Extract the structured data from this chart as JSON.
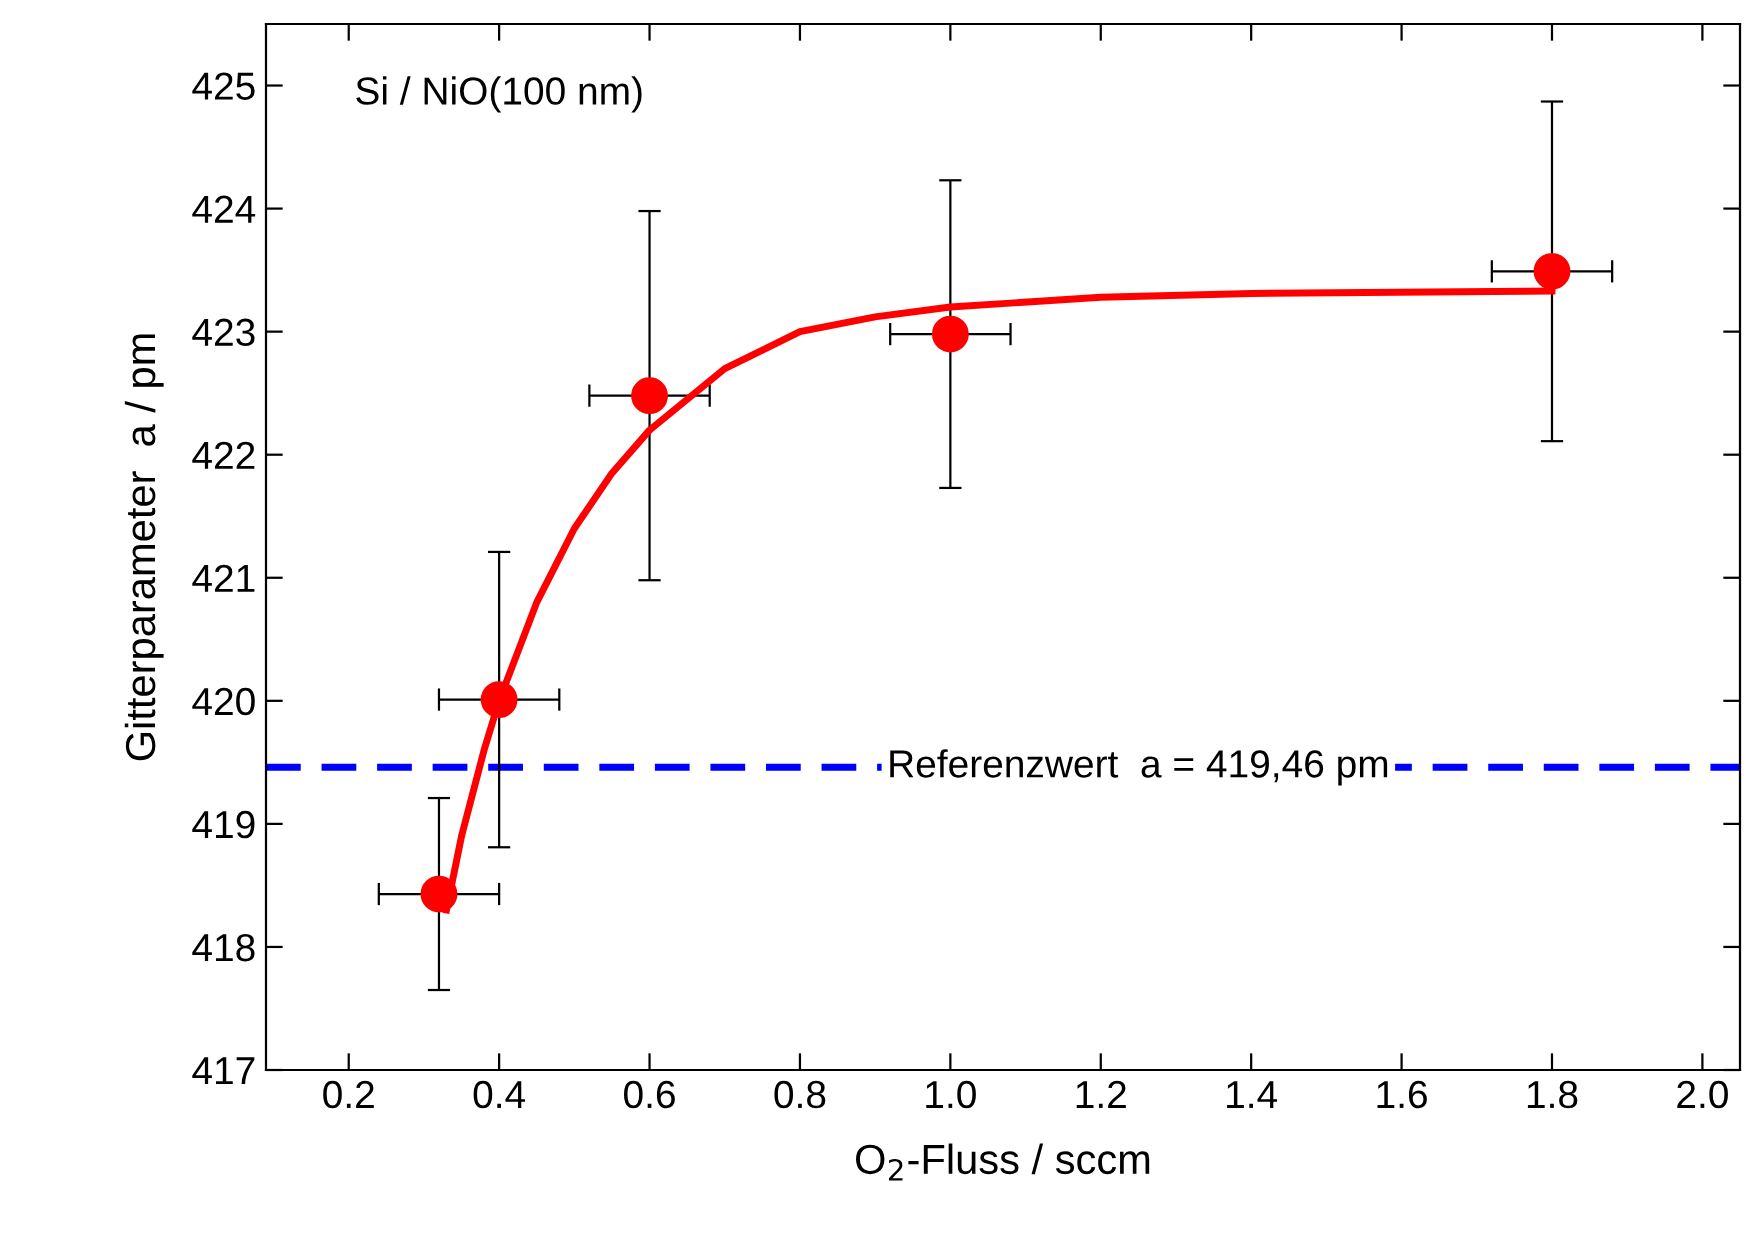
{
  "chart_data": {
    "type": "scatter",
    "xlabel": "O$_{2}$-Fluss / sccm",
    "ylabel": "Gitterparameter  a / pm",
    "annotations": [
      "Si / NiO(100 nm)"
    ],
    "xlim": [
      0.09,
      2.05
    ],
    "ylim": [
      417,
      425.5
    ],
    "xticks": [
      0.2,
      0.4,
      0.6,
      0.8,
      {
        "value": 1,
        "label": "1.0"
      },
      1.2,
      1.4,
      1.6,
      1.8,
      {
        "value": 2,
        "label": "2.0"
      }
    ],
    "yticks": [
      417,
      418,
      419,
      420,
      421,
      422,
      423,
      424,
      425
    ],
    "grid": false,
    "legend": false,
    "marker": "circle",
    "series": [
      {
        "color": "#ff0000",
        "x": [
          0.32,
          0.4,
          0.6,
          1.0,
          1.8
        ],
        "values": [
          418.43,
          420.01,
          422.48,
          422.98,
          423.49
        ],
        "errors": [
          0.78,
          1.2,
          1.5,
          1.25,
          1.38
        ],
        "xerrors": [
          0.08,
          0.08,
          0.08,
          0.08,
          0.08
        ]
      },
      {
        "type": "line",
        "color": "#ff0000",
        "line_style": "solid",
        "marker": "none",
        "x": [
          0.33,
          0.35,
          0.38,
          0.4,
          0.45,
          0.5,
          0.55,
          0.6,
          0.7,
          0.8,
          0.9,
          1.0,
          1.2,
          1.4,
          1.8
        ],
        "values": [
          418.3,
          418.9,
          419.6,
          420.0,
          420.8,
          421.4,
          421.85,
          422.2,
          422.7,
          423.0,
          423.12,
          423.2,
          423.28,
          423.31,
          423.33
        ]
      }
    ],
    "ref_lines": [
      {
        "axis": "y",
        "value": 419.46,
        "label": "Referenzwert  a = 419,46 pm",
        "color": "#0000ff",
        "line_style": "dashed"
      }
    ]
  }
}
